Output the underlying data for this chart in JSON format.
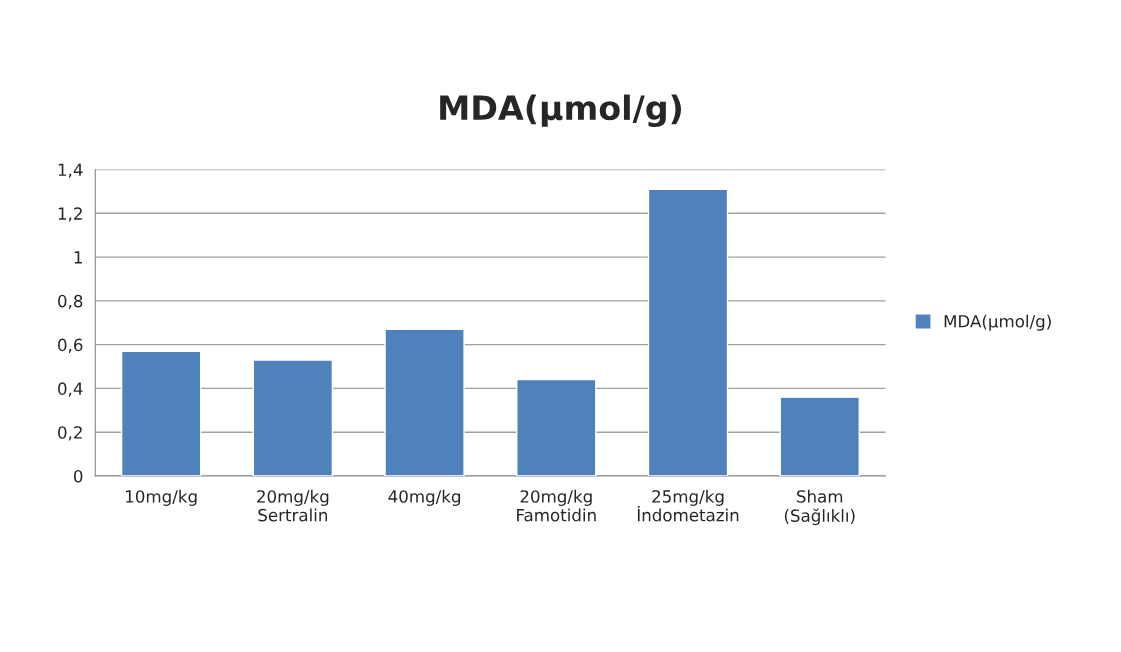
{
  "chart_data": {
    "type": "bar",
    "title": "MDA(µmol/g)",
    "categories": [
      "10mg/kg",
      "20mg/kg\nSertralin",
      "40mg/kg",
      "20mg/kg\nFamotidin",
      "25mg/kg\nİndometazin",
      "Sham\n(Sağlıklı)"
    ],
    "series": [
      {
        "name": "MDA(µmol/g)",
        "color": "#4f81bd",
        "values": [
          0.57,
          0.53,
          0.67,
          0.44,
          1.31,
          0.36
        ]
      }
    ],
    "ylim": [
      0,
      1.4
    ],
    "yticks": [
      {
        "value": 0,
        "label": "0"
      },
      {
        "value": 0.2,
        "label": "0,2"
      },
      {
        "value": 0.4,
        "label": "0,4"
      },
      {
        "value": 0.6,
        "label": "0,6"
      },
      {
        "value": 0.8,
        "label": "0,8"
      },
      {
        "value": 1,
        "label": "1"
      },
      {
        "value": 1.2,
        "label": "1,2"
      },
      {
        "value": 1.4,
        "label": "1,4"
      }
    ],
    "grid": "y",
    "legend": "right"
  }
}
